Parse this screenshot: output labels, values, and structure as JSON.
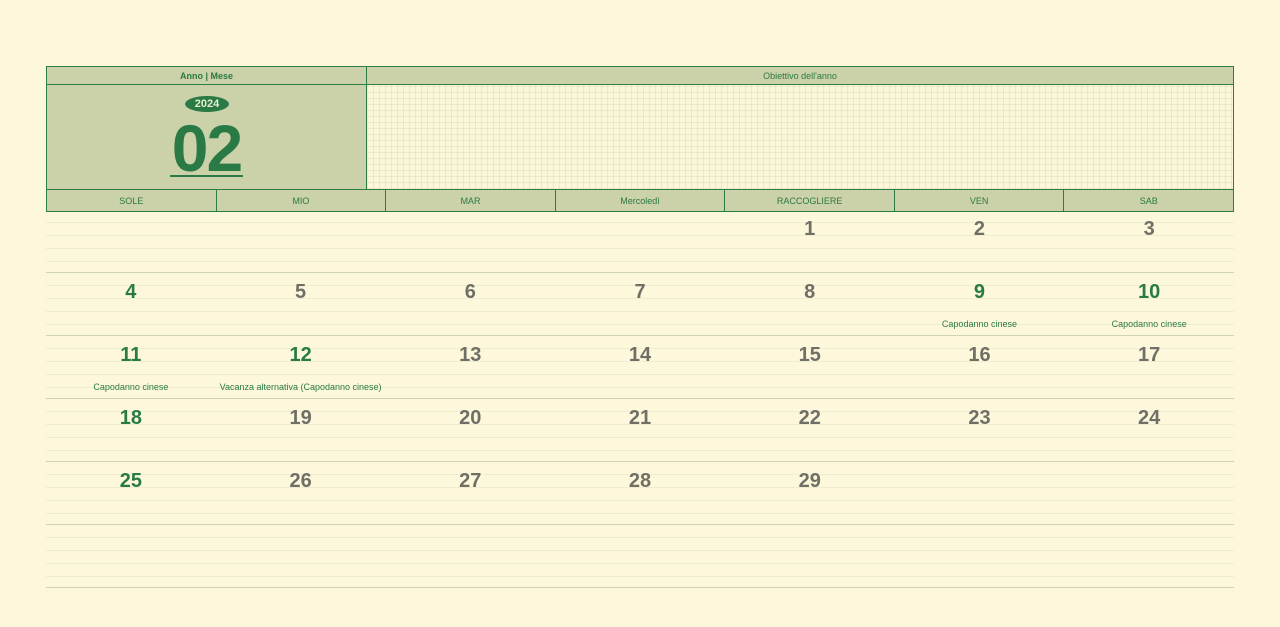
{
  "header": {
    "year_month_label": "Anno | Mese",
    "goal_label": "Obiettivo dell'anno",
    "year": "2024",
    "month": "02"
  },
  "weekdays": [
    "SOLE",
    "MIO",
    "MAR",
    "Mercoledì",
    "RACCOGLIERE",
    "VEN",
    "SAB"
  ],
  "weeks": [
    [
      {
        "d": "",
        "g": false,
        "e": ""
      },
      {
        "d": "",
        "g": false,
        "e": ""
      },
      {
        "d": "",
        "g": false,
        "e": ""
      },
      {
        "d": "",
        "g": false,
        "e": ""
      },
      {
        "d": "1",
        "g": false,
        "e": ""
      },
      {
        "d": "2",
        "g": false,
        "e": ""
      },
      {
        "d": "3",
        "g": false,
        "e": ""
      }
    ],
    [
      {
        "d": "4",
        "g": true,
        "e": ""
      },
      {
        "d": "5",
        "g": false,
        "e": ""
      },
      {
        "d": "6",
        "g": false,
        "e": ""
      },
      {
        "d": "7",
        "g": false,
        "e": ""
      },
      {
        "d": "8",
        "g": false,
        "e": ""
      },
      {
        "d": "9",
        "g": true,
        "e": "Capodanno cinese"
      },
      {
        "d": "10",
        "g": true,
        "e": "Capodanno cinese"
      }
    ],
    [
      {
        "d": "11",
        "g": true,
        "e": "Capodanno cinese"
      },
      {
        "d": "12",
        "g": true,
        "e": "Vacanza alternativa (Capodanno cinese)"
      },
      {
        "d": "13",
        "g": false,
        "e": ""
      },
      {
        "d": "14",
        "g": false,
        "e": ""
      },
      {
        "d": "15",
        "g": false,
        "e": ""
      },
      {
        "d": "16",
        "g": false,
        "e": ""
      },
      {
        "d": "17",
        "g": false,
        "e": ""
      }
    ],
    [
      {
        "d": "18",
        "g": true,
        "e": ""
      },
      {
        "d": "19",
        "g": false,
        "e": ""
      },
      {
        "d": "20",
        "g": false,
        "e": ""
      },
      {
        "d": "21",
        "g": false,
        "e": ""
      },
      {
        "d": "22",
        "g": false,
        "e": ""
      },
      {
        "d": "23",
        "g": false,
        "e": ""
      },
      {
        "d": "24",
        "g": false,
        "e": ""
      }
    ],
    [
      {
        "d": "25",
        "g": true,
        "e": ""
      },
      {
        "d": "26",
        "g": false,
        "e": ""
      },
      {
        "d": "27",
        "g": false,
        "e": ""
      },
      {
        "d": "28",
        "g": false,
        "e": ""
      },
      {
        "d": "29",
        "g": false,
        "e": ""
      },
      {
        "d": "",
        "g": false,
        "e": ""
      },
      {
        "d": "",
        "g": false,
        "e": ""
      }
    ],
    [
      {
        "d": "",
        "g": false,
        "e": ""
      },
      {
        "d": "",
        "g": false,
        "e": ""
      },
      {
        "d": "",
        "g": false,
        "e": ""
      },
      {
        "d": "",
        "g": false,
        "e": ""
      },
      {
        "d": "",
        "g": false,
        "e": ""
      },
      {
        "d": "",
        "g": false,
        "e": ""
      },
      {
        "d": "",
        "g": false,
        "e": ""
      }
    ]
  ],
  "colors": {
    "accent": "#2a7a45",
    "header_fill": "#cbd1a8",
    "background": "#fdf8dc",
    "weekday_number": "#6f6f66"
  }
}
